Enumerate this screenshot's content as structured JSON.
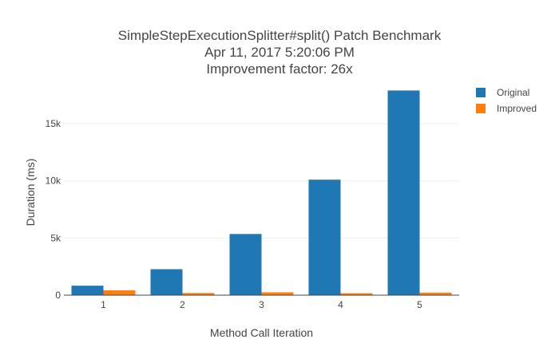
{
  "chart_data": {
    "type": "bar",
    "title_lines": [
      "SimpleStepExecutionSplitter#split() Patch Benchmark",
      "Apr 11, 2017 5:20:06 PM",
      "Improvement factor: 26x"
    ],
    "xlabel": "Method Call Iteration",
    "ylabel": "Duration (ms)",
    "categories": [
      "1",
      "2",
      "3",
      "4",
      "5"
    ],
    "ylim": [
      0,
      18000
    ],
    "yticks": [
      0,
      5000,
      10000,
      15000
    ],
    "ytick_labels": [
      "0",
      "5k",
      "10k",
      "15k"
    ],
    "grid": true,
    "legend_position": "top-right",
    "series": [
      {
        "name": "Original",
        "color": "#1f77b4",
        "values": [
          830,
          2270,
          5350,
          10100,
          17900
        ]
      },
      {
        "name": "Improved",
        "color": "#ff7f0e",
        "values": [
          430,
          190,
          250,
          170,
          220
        ]
      }
    ]
  }
}
